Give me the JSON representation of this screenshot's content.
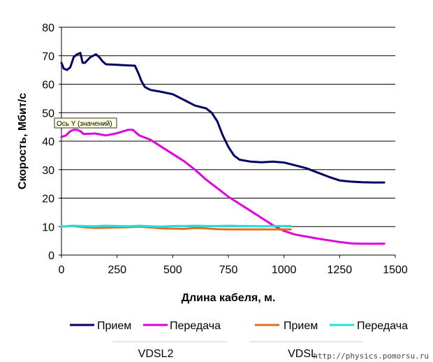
{
  "chart_data": {
    "type": "line",
    "title": "",
    "xlabel": "Длина кабеля, м.",
    "ylabel": "Скорость, Мбит/с",
    "xlim": [
      0,
      1500
    ],
    "ylim": [
      0,
      80
    ],
    "xticks": [
      0,
      250,
      500,
      750,
      1000,
      1250,
      1500
    ],
    "yticks": [
      0,
      10,
      20,
      30,
      40,
      50,
      60,
      70,
      80
    ],
    "grid": "horizontal",
    "legend_position": "bottom",
    "series": [
      {
        "name": "Прием",
        "group": "VDSL2",
        "color": "#000066",
        "x": [
          0,
          10,
          25,
          40,
          55,
          70,
          85,
          95,
          105,
          130,
          155,
          170,
          185,
          200,
          250,
          300,
          330,
          345,
          360,
          375,
          400,
          450,
          500,
          550,
          600,
          650,
          675,
          700,
          725,
          750,
          775,
          800,
          850,
          900,
          950,
          1000,
          1050,
          1100,
          1150,
          1200,
          1250,
          1300,
          1350,
          1400,
          1450
        ],
        "y": [
          67.5,
          65.5,
          65,
          66,
          69.5,
          70.5,
          71,
          67.5,
          67.5,
          69.5,
          70.5,
          69.5,
          68,
          67,
          66.8,
          66.6,
          66.5,
          64,
          61,
          59,
          58,
          57.3,
          56.5,
          54.5,
          52.5,
          51.5,
          50,
          47,
          42,
          38,
          35,
          33.5,
          32.8,
          32.6,
          32.8,
          32.5,
          31.5,
          30.5,
          29,
          27.5,
          26.2,
          25.8,
          25.6,
          25.5,
          25.5
        ]
      },
      {
        "name": "Передача",
        "group": "VDSL2",
        "color": "#E000E0",
        "x": [
          0,
          20,
          40,
          55,
          70,
          85,
          100,
          150,
          200,
          250,
          300,
          320,
          350,
          400,
          450,
          500,
          550,
          600,
          650,
          700,
          750,
          800,
          850,
          900,
          950,
          1000,
          1050,
          1100,
          1150,
          1200,
          1250,
          1300,
          1350,
          1400,
          1450
        ],
        "y": [
          41.5,
          42,
          43.5,
          44,
          44,
          43.5,
          42.5,
          42.7,
          42,
          42.8,
          44,
          44,
          42,
          40.5,
          38,
          35.5,
          33,
          30,
          26.5,
          23.5,
          20.5,
          18,
          15.5,
          13,
          10.5,
          8.5,
          7.2,
          6.5,
          5.8,
          5.2,
          4.6,
          4.1,
          4,
          4,
          4
        ]
      },
      {
        "name": "Прием",
        "group": "VDSL",
        "color": "#E07020",
        "x": [
          0,
          50,
          100,
          150,
          200,
          250,
          300,
          350,
          400,
          450,
          500,
          550,
          600,
          650,
          700,
          750,
          800,
          850,
          900,
          950,
          1000,
          1030
        ],
        "y": [
          10,
          10.2,
          9.8,
          9.5,
          9.6,
          9.7,
          9.8,
          10,
          9.7,
          9.4,
          9.3,
          9.2,
          9.5,
          9.4,
          9.1,
          9.0,
          9.0,
          9.0,
          9.0,
          9.0,
          9.0,
          9.0
        ]
      },
      {
        "name": "Передача",
        "group": "VDSL",
        "color": "#20E0E0",
        "x": [
          0,
          50,
          100,
          150,
          200,
          250,
          300,
          350,
          400,
          450,
          500,
          550,
          600,
          650,
          700,
          750,
          800,
          850,
          900,
          950,
          1000,
          1030
        ],
        "y": [
          10,
          10.3,
          10.2,
          10.1,
          10.3,
          10.2,
          10.1,
          10.3,
          10.1,
          10.0,
          10.2,
          10.2,
          10.3,
          10.2,
          10.2,
          10.3,
          10.2,
          10.2,
          10.1,
          10.2,
          10.2,
          10.2
        ]
      }
    ],
    "legend_groups": [
      "VDSL2",
      "VDSL"
    ],
    "tooltip": "Ось Y (значений)",
    "watermark": "http://physics.pomorsu.ru"
  }
}
